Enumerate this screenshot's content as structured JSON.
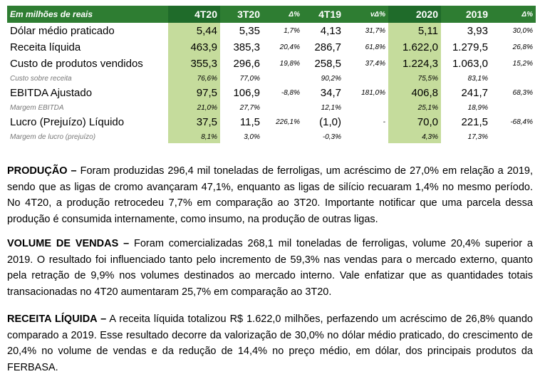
{
  "table": {
    "header": {
      "label": "Em milhões de reais",
      "c1": "4T20",
      "c2": "3T20",
      "c3": "Δ%",
      "c4": "4T19",
      "c5": "vΔ%",
      "c6": "2020",
      "c7": "2019",
      "c8": "Δ%"
    },
    "rows": [
      {
        "type": "main",
        "label": "Dólar médio praticado",
        "c1": "5,44",
        "c2": "5,35",
        "c3": "1,7%",
        "c4": "4,13",
        "c5": "31,7%",
        "c6": "5,11",
        "c7": "3,93",
        "c8": "30,0%"
      },
      {
        "type": "main",
        "label": "Receita líquida",
        "c1": "463,9",
        "c2": "385,3",
        "c3": "20,4%",
        "c4": "286,7",
        "c5": "61,8%",
        "c6": "1.622,0",
        "c7": "1.279,5",
        "c8": "26,8%"
      },
      {
        "type": "main",
        "label": "Custo de produtos vendidos",
        "c1": "355,3",
        "c2": "296,6",
        "c3": "19,8%",
        "c4": "258,5",
        "c5": "37,4%",
        "c6": "1.224,3",
        "c7": "1.063,0",
        "c8": "15,2%"
      },
      {
        "type": "sub",
        "label": "Custo sobre receita",
        "c1": "76,6%",
        "c2": "77,0%",
        "c3": "",
        "c4": "90,2%",
        "c5": "",
        "c6": "75,5%",
        "c7": "83,1%",
        "c8": ""
      },
      {
        "type": "main",
        "label": "EBITDA Ajustado",
        "c1": "97,5",
        "c2": "106,9",
        "c3": "-8,8%",
        "c4": "34,7",
        "c5": "181,0%",
        "c6": "406,8",
        "c7": "241,7",
        "c8": "68,3%"
      },
      {
        "type": "sub",
        "label": "Margem EBITDA",
        "c1": "21,0%",
        "c2": "27,7%",
        "c3": "",
        "c4": "12,1%",
        "c5": "",
        "c6": "25,1%",
        "c7": "18,9%",
        "c8": ""
      },
      {
        "type": "main",
        "label": "Lucro (Prejuízo) Líquido",
        "c1": "37,5",
        "c2": "11,5",
        "c3": "226,1%",
        "c4": "(1,0)",
        "c5": "-",
        "c6": "70,0",
        "c7": "221,5",
        "c8": "-68,4%"
      },
      {
        "type": "sub",
        "label": "Margem de lucro (prejuízo)",
        "c1": "8,1%",
        "c2": "3,0%",
        "c3": "",
        "c4": "-0,3%",
        "c5": "",
        "c6": "4,3%",
        "c7": "17,3%",
        "c8": ""
      }
    ]
  },
  "paragraphs": [
    {
      "heading": "PRODUÇÃO –",
      "text": " Foram produzidas 296,4 mil toneladas de ferroligas, um acréscimo de 27,0% em relação a 2019, sendo que as ligas de cromo avançaram 47,1%, enquanto as ligas de silício recuaram 1,4% no mesmo período. No 4T20, a produção retrocedeu 7,7% em comparação ao 3T20. Importante notificar que uma parcela dessa produção é consumida internamente, como insumo, na produção de outras ligas."
    },
    {
      "heading": "VOLUME DE VENDAS –",
      "text": " Foram comercializadas 268,1 mil toneladas de ferroligas, volume 20,4% superior a 2019. O resultado foi influenciado tanto pelo incremento de 59,3% nas vendas para o mercado externo, quanto pela retração de 9,9% nos volumes destinados ao mercado interno. Vale enfatizar que as quantidades totais transacionadas no 4T20 aumentaram 25,7% em comparação ao 3T20."
    },
    {
      "heading": "RECEITA LÍQUIDA –",
      "text": " A receita líquida totalizou R$ 1.622,0 milhões, perfazendo um acréscimo de 26,8% quando comparado a 2019. Esse resultado decorre da valorização de 30,0% no dólar médio praticado, do crescimento de 20,4% no volume de vendas e da redução de 14,4% no preço médio, em dólar, dos principais produtos da FERBASA."
    }
  ]
}
